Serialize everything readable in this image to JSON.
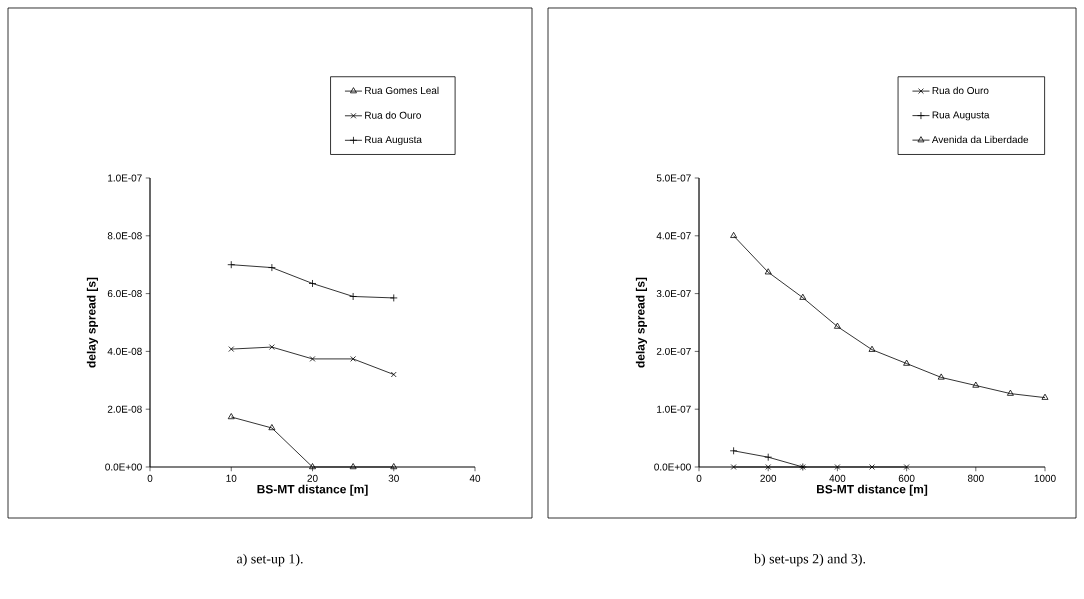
{
  "chart_data": [
    {
      "type": "line",
      "xlabel": "BS-MT distance [m]",
      "ylabel": "delay spread [s]",
      "legend": "top",
      "grid": false,
      "xlim": [
        0,
        40
      ],
      "xticks": [
        0,
        10,
        20,
        30,
        40
      ],
      "ylim": [
        0,
        1e-07
      ],
      "yticks": [
        {
          "value": 0,
          "label": "0.0E+00"
        },
        {
          "value": 2e-08,
          "label": "2.0E-08"
        },
        {
          "value": 4e-08,
          "label": "4.0E-08"
        },
        {
          "value": 6e-08,
          "label": "6.0E-08"
        },
        {
          "value": 8e-08,
          "label": "8.0E-08"
        },
        {
          "value": 1e-07,
          "label": "1.0E-07"
        }
      ],
      "x": [
        10,
        15,
        20,
        25,
        30
      ],
      "series": [
        {
          "name": "Rua Gomes Leal",
          "color": "#000000",
          "marker": "triangle",
          "values": [
            1.73e-08,
            1.35e-08,
            0,
            0,
            0
          ]
        },
        {
          "name": "Rua do Ouro",
          "color": "#000000",
          "marker": "cross",
          "values": [
            4.08e-08,
            4.15e-08,
            3.74e-08,
            3.74e-08,
            3.2e-08
          ]
        },
        {
          "name": "Rua Augusta",
          "color": "#000000",
          "marker": "plus",
          "values": [
            7e-08,
            6.9e-08,
            6.35e-08,
            5.9e-08,
            5.85e-08
          ]
        }
      ],
      "annotations": [
        "a) set-up 1)."
      ]
    },
    {
      "type": "line",
      "xlabel": "BS-MT distance [m]",
      "ylabel": "delay spread [s]",
      "legend": "top",
      "grid": false,
      "xlim": [
        0,
        1000
      ],
      "xticks": [
        0,
        200,
        400,
        600,
        800,
        1000
      ],
      "ylim": [
        0,
        5e-07
      ],
      "yticks": [
        {
          "value": 0,
          "label": "0.0E+00"
        },
        {
          "value": 1e-07,
          "label": "1.0E-07"
        },
        {
          "value": 2e-07,
          "label": "2.0E-07"
        },
        {
          "value": 3e-07,
          "label": "3.0E-07"
        },
        {
          "value": 4e-07,
          "label": "4.0E-07"
        },
        {
          "value": 5e-07,
          "label": "5.0E-07"
        }
      ],
      "series": [
        {
          "name": "Rua do Ouro",
          "color": "#000000",
          "marker": "cross",
          "x": [
            100,
            200,
            300,
            400,
            500,
            600
          ],
          "values": [
            0,
            0,
            0,
            0,
            0,
            0
          ]
        },
        {
          "name": "Rua Augusta",
          "color": "#000000",
          "marker": "plus",
          "x": [
            100,
            200,
            300
          ],
          "values": [
            2.8e-08,
            1.7e-08,
            0
          ]
        },
        {
          "name": "Avenida da Liberdade",
          "color": "#000000",
          "marker": "triangle",
          "x": [
            100,
            200,
            300,
            400,
            500,
            600,
            700,
            800,
            900,
            1000
          ],
          "values": [
            4e-07,
            3.37e-07,
            2.93e-07,
            2.43e-07,
            2.03e-07,
            1.79e-07,
            1.55e-07,
            1.41e-07,
            1.27e-07,
            1.2e-07
          ]
        }
      ],
      "annotations": [
        "b) set-ups 2) and 3)."
      ]
    }
  ]
}
